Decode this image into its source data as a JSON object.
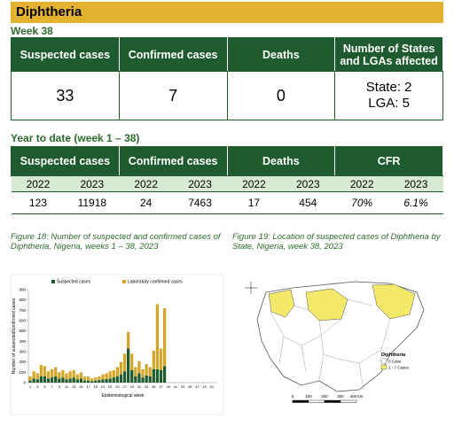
{
  "header": {
    "title": "Diphtheria"
  },
  "week_section": {
    "label": "Week 38",
    "headers": [
      "Suspected cases",
      "Confirmed cases",
      "Deaths",
      "Number of States and LGAs affected"
    ],
    "values": [
      "33",
      "7",
      "0"
    ],
    "states": "State: 2",
    "lgas": "LGA: 5"
  },
  "ytd_section": {
    "label": "Year to date (week 1 – 38)",
    "headers": [
      "Suspected cases",
      "Confirmed cases",
      "Deaths",
      "CFR"
    ],
    "years": [
      "2022",
      "2023",
      "2022",
      "2023",
      "2022",
      "2023",
      "2022",
      "2023"
    ],
    "values": [
      "123",
      "11918",
      "24",
      "7463",
      "17",
      "454",
      "70%",
      "6.1%"
    ]
  },
  "figure18": {
    "caption": "Figure 18: Number of suspected and confirmed cases of Diphtheria, Nigeria, weeks 1 – 38, 2023",
    "chart_data": {
      "type": "bar",
      "stacked": true,
      "y_label": "Number of suspected/confirmed cases",
      "x_label": "Epidemiological week",
      "categories": [
        "1",
        null,
        "3",
        null,
        "5",
        null,
        "7",
        null,
        "9",
        null,
        "11",
        null,
        "13",
        null,
        "15",
        null,
        "17",
        null,
        "19",
        null,
        "21",
        null,
        "23",
        null,
        "25",
        null,
        "27",
        null,
        "29",
        null,
        "31",
        null,
        "33",
        null,
        "35",
        null,
        "37",
        null,
        "39",
        null,
        "41",
        null,
        "43",
        null,
        "45",
        null,
        "47",
        null,
        "49",
        null,
        "51",
        null
      ],
      "series": [
        {
          "name": "Suspected cases",
          "color": "#1e5b2e",
          "values": [
            20,
            40,
            30,
            60,
            60,
            40,
            50,
            60,
            40,
            50,
            30,
            40,
            50,
            30,
            40,
            20,
            20,
            15,
            20,
            25,
            30,
            35,
            40,
            50,
            60,
            80,
            110,
            330,
            120,
            60,
            90,
            50,
            70,
            60,
            130,
            130,
            120,
            160,
            null,
            null,
            null,
            null,
            null,
            null,
            null,
            null,
            null,
            null,
            null,
            null,
            null,
            null
          ]
        },
        {
          "name": "Laboratory confirmed cases",
          "color": "#d4a62a",
          "values": [
            40,
            70,
            60,
            110,
            100,
            70,
            80,
            90,
            60,
            70,
            60,
            70,
            70,
            50,
            60,
            40,
            40,
            25,
            30,
            35,
            50,
            55,
            70,
            70,
            90,
            120,
            170,
            160,
            160,
            90,
            120,
            80,
            110,
            90,
            180,
            630,
            210,
            560,
            null,
            null,
            null,
            null,
            null,
            null,
            null,
            null,
            null,
            null,
            null,
            null,
            null,
            null
          ]
        }
      ],
      "ylim": [
        0,
        900
      ],
      "yticks": [
        0,
        100,
        200,
        300,
        400,
        500,
        600,
        700,
        800,
        900
      ]
    }
  },
  "figure19": {
    "caption": "Figure 19: Location of suspected cases of Diphtheria by State, Nigeria, week 38, 2023",
    "map": {
      "legend_title": "Diphtheria",
      "legend": [
        {
          "label": "0 Case",
          "color": "#ffffff"
        },
        {
          "label": "1 - 7 Cases",
          "color": "#f2e86a"
        }
      ],
      "scale_labels": [
        "0",
        "100",
        "200",
        "300",
        "400 km"
      ]
    }
  }
}
